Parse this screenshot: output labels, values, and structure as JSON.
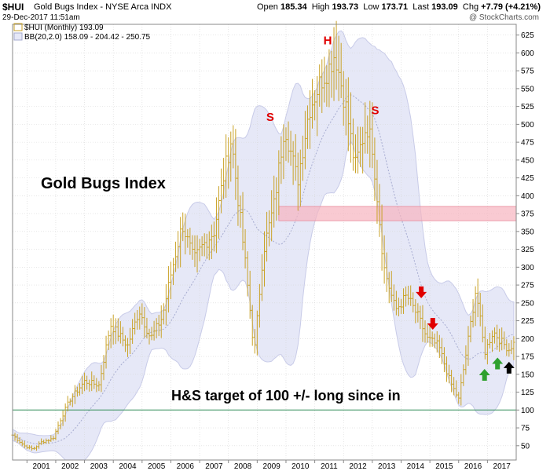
{
  "header": {
    "symbol": "$HUI",
    "title": "Gold Bugs Index - NYSE Arca INDX",
    "date": "29-Dec-2017 11:51am",
    "brand": "@ StockCharts.com",
    "open_label": "Open",
    "open": "185.34",
    "high_label": "High",
    "high": "193.73",
    "low_label": "Low",
    "low": "173.71",
    "last_label": "Last",
    "last": "193.09",
    "chg_label": "Chg",
    "chg": "+7.79 (+4.21%)"
  },
  "legend": {
    "series": "$HUI (Monthly) 193.09",
    "bb": "BB(20,2.0) 158.09 - 204.42 - 250.75"
  },
  "annotations": {
    "title": "Gold Bugs Index",
    "target": "H&S target of 100 +/- long since in",
    "shoulder_left": "S",
    "head": "H",
    "shoulder_right": "S"
  },
  "colors": {
    "bars": "#c9a227",
    "band_fill": "#e6e8f7",
    "band_edge": "#c8cbe8",
    "mid_line": "#a6abd0",
    "zone": "#f6b4bf",
    "target_line": "#2e8b57",
    "red_arrow": "#e00000",
    "green_arrow": "#2ea02e",
    "black_arrow": "#000000",
    "hs_letters": "#e00000"
  },
  "chart_data": {
    "type": "ohlc",
    "title": "Gold Bugs Index",
    "series_name": "$HUI (Monthly)",
    "x_start": 2000.5,
    "x_end": 2018.0,
    "x_ticks": [
      "2001",
      "2002",
      "2003",
      "2004",
      "2005",
      "2006",
      "2007",
      "2008",
      "2009",
      "2010",
      "2011",
      "2012",
      "2013",
      "2014",
      "2015",
      "2016",
      "2017"
    ],
    "x_tick_values": [
      2001,
      2002,
      2003,
      2004,
      2005,
      2006,
      2007,
      2008,
      2009,
      2010,
      2011,
      2012,
      2013,
      2014,
      2015,
      2016,
      2017
    ],
    "ylim": [
      30,
      640
    ],
    "y_ticks": [
      50,
      75,
      100,
      125,
      150,
      175,
      200,
      225,
      250,
      275,
      300,
      325,
      350,
      375,
      400,
      425,
      450,
      475,
      500,
      525,
      550,
      575,
      600,
      625
    ],
    "grid": true,
    "target_level": 100,
    "resistance_zone": {
      "x_from": 2009.75,
      "x_to": 2018.0,
      "y_from": 365,
      "y_to": 385
    },
    "price_anchors": [
      [
        2000.5,
        65
      ],
      [
        2000.9,
        50
      ],
      [
        2001.2,
        45
      ],
      [
        2001.5,
        55
      ],
      [
        2001.9,
        60
      ],
      [
        2002.2,
        90
      ],
      [
        2002.5,
        115
      ],
      [
        2003.0,
        140
      ],
      [
        2003.5,
        135
      ],
      [
        2003.9,
        220
      ],
      [
        2004.2,
        205
      ],
      [
        2004.5,
        190
      ],
      [
        2004.9,
        240
      ],
      [
        2005.3,
        200
      ],
      [
        2005.7,
        230
      ],
      [
        2006.0,
        290
      ],
      [
        2006.4,
        360
      ],
      [
        2006.8,
        310
      ],
      [
        2007.1,
        330
      ],
      [
        2007.5,
        350
      ],
      [
        2007.8,
        420
      ],
      [
        2008.1,
        480
      ],
      [
        2008.6,
        300
      ],
      [
        2008.9,
        180
      ],
      [
        2009.2,
        320
      ],
      [
        2009.6,
        390
      ],
      [
        2009.95,
        500
      ],
      [
        2010.4,
        420
      ],
      [
        2010.8,
        520
      ],
      [
        2011.2,
        560
      ],
      [
        2011.5,
        580
      ],
      [
        2011.7,
        600
      ],
      [
        2012.1,
        520
      ],
      [
        2012.4,
        440
      ],
      [
        2012.8,
        500
      ],
      [
        2013.0,
        470
      ],
      [
        2013.4,
        300
      ],
      [
        2013.8,
        240
      ],
      [
        2014.2,
        260
      ],
      [
        2014.6,
        230
      ],
      [
        2014.9,
        200
      ],
      [
        2015.3,
        190
      ],
      [
        2015.7,
        140
      ],
      [
        2016.0,
        115
      ],
      [
        2016.3,
        190
      ],
      [
        2016.6,
        270
      ],
      [
        2016.9,
        180
      ],
      [
        2017.2,
        210
      ],
      [
        2017.5,
        195
      ],
      [
        2017.75,
        185
      ],
      [
        2017.9,
        193
      ]
    ],
    "arrows": [
      {
        "color": "red",
        "direction": "down",
        "x": 2014.7,
        "y": 262
      },
      {
        "color": "red",
        "direction": "down",
        "x": 2015.1,
        "y": 218
      },
      {
        "color": "green",
        "direction": "up",
        "x": 2016.9,
        "y": 152
      },
      {
        "color": "green",
        "direction": "up",
        "x": 2017.35,
        "y": 168
      },
      {
        "color": "black",
        "direction": "up",
        "x": 2017.75,
        "y": 162
      }
    ],
    "hs_labels": [
      {
        "key": "shoulder_left",
        "x": 2009.45,
        "y": 505
      },
      {
        "key": "head",
        "x": 2011.45,
        "y": 612
      },
      {
        "key": "shoulder_right",
        "x": 2013.1,
        "y": 514
      }
    ]
  }
}
